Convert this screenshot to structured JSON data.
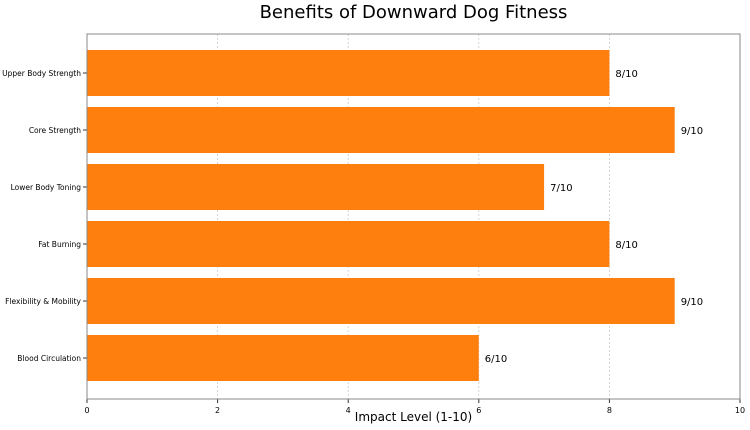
{
  "chart_data": {
    "type": "bar",
    "orientation": "horizontal",
    "title": "Benefits of Downward Dog Fitness",
    "xlabel": "Impact Level (1-10)",
    "ylabel": "",
    "categories": [
      "Upper Body Strength",
      "Core Strength",
      "Lower Body Toning",
      "Fat Burning",
      "Flexibility & Mobility",
      "Blood Circulation"
    ],
    "values": [
      8,
      9,
      7,
      8,
      9,
      6
    ],
    "data_labels": [
      "8/10",
      "9/10",
      "7/10",
      "8/10",
      "9/10",
      "6/10"
    ],
    "xlim": [
      0,
      10
    ],
    "xticks": [
      "0",
      "2",
      "4",
      "6",
      "8",
      "10"
    ],
    "grid": "vertical",
    "bar_color": "#ff7f0e"
  }
}
